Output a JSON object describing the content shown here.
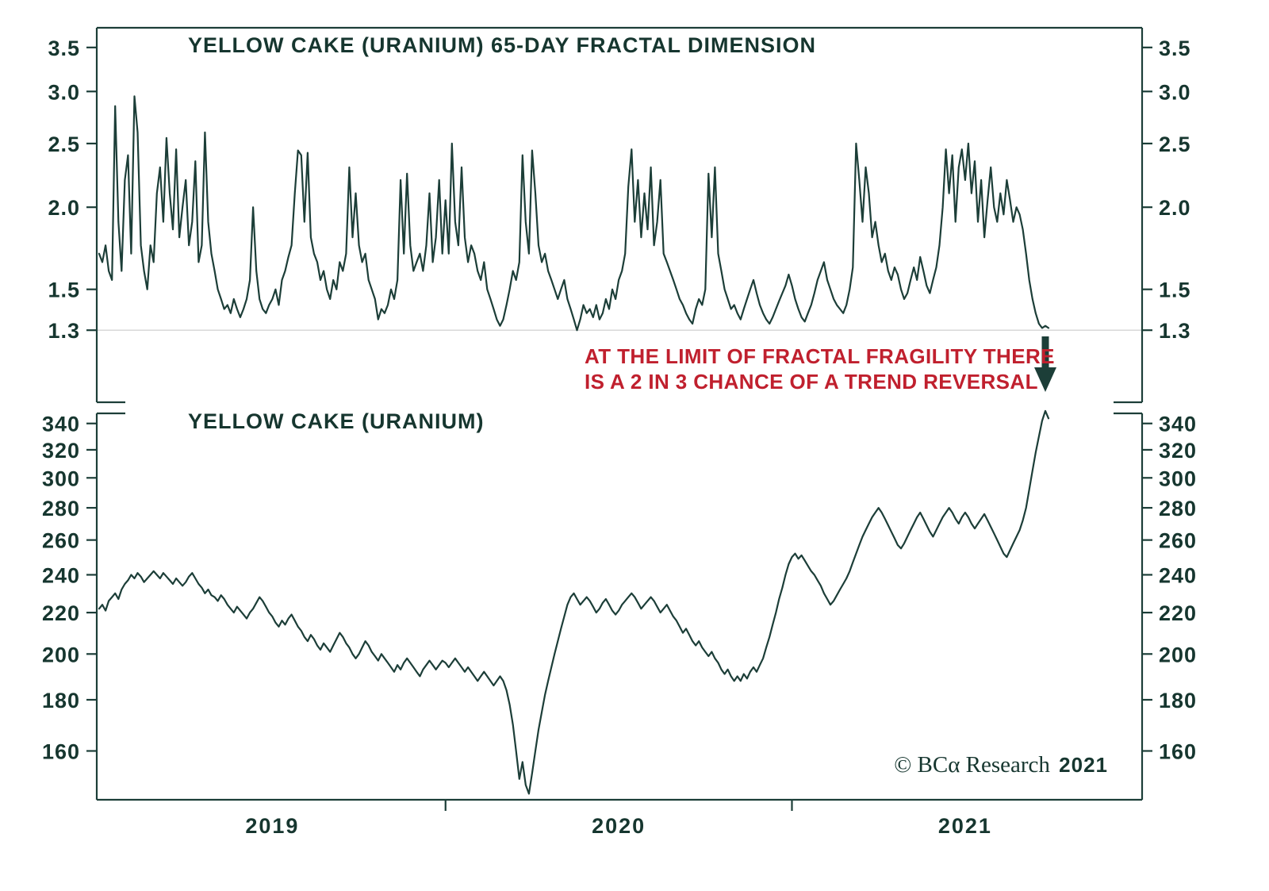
{
  "colors": {
    "line": "#1c3e38",
    "text": "#16362f",
    "annotation_red": "#c0202e",
    "gridline": "#c4c4c4",
    "background": "#ffffff"
  },
  "annotation": {
    "line1": "AT THE LIMIT OF FRACTAL FRAGILITY THERE",
    "line2": "IS A 2 IN 3 CHANCE OF A TREND REVERSAL"
  },
  "copyright": {
    "text": "© BCα Research",
    "year": "2021"
  },
  "x_axis": {
    "year_labels": [
      "2019",
      "2020",
      "2021"
    ],
    "months_total": 33,
    "points_per_month": 9,
    "year_tick_months": [
      12,
      24
    ],
    "year_label_center_months": [
      6,
      18,
      30
    ]
  },
  "chart_data": [
    {
      "type": "line",
      "title": "YELLOW CAKE (URANIUM) 65-DAY FRACTAL DIMENSION",
      "series_name": "65-day fractal dimension",
      "yscale": "log",
      "ylim": [
        1.01,
        3.75
      ],
      "ytick_values": [
        3.5,
        3.0,
        2.5,
        2.0,
        1.5,
        1.3
      ],
      "ytick_labels": [
        "3.5",
        "3.0",
        "2.5",
        "2.0",
        "1.5",
        "1.3"
      ],
      "reference_line": 1.3,
      "legend_position": "none",
      "grid": "reference-line-only",
      "values": [
        1.7,
        1.65,
        1.75,
        1.6,
        1.55,
        2.85,
        1.9,
        1.6,
        2.2,
        2.4,
        1.7,
        2.95,
        2.6,
        1.75,
        1.6,
        1.5,
        1.75,
        1.65,
        2.1,
        2.3,
        1.9,
        2.55,
        2.1,
        1.85,
        2.45,
        1.8,
        2.0,
        2.2,
        1.75,
        1.9,
        2.35,
        1.65,
        1.75,
        2.6,
        1.9,
        1.7,
        1.6,
        1.5,
        1.45,
        1.4,
        1.42,
        1.38,
        1.45,
        1.4,
        1.36,
        1.4,
        1.45,
        1.55,
        2.0,
        1.6,
        1.45,
        1.4,
        1.38,
        1.42,
        1.45,
        1.5,
        1.42,
        1.55,
        1.6,
        1.68,
        1.75,
        2.1,
        2.44,
        2.4,
        1.9,
        2.42,
        1.8,
        1.7,
        1.65,
        1.55,
        1.6,
        1.5,
        1.45,
        1.55,
        1.5,
        1.65,
        1.6,
        1.7,
        2.3,
        1.8,
        2.1,
        1.75,
        1.65,
        1.7,
        1.55,
        1.5,
        1.45,
        1.35,
        1.4,
        1.38,
        1.42,
        1.5,
        1.45,
        1.55,
        2.2,
        1.7,
        2.25,
        1.75,
        1.6,
        1.65,
        1.7,
        1.6,
        1.75,
        2.1,
        1.65,
        1.8,
        2.2,
        1.7,
        2.05,
        1.7,
        2.5,
        1.9,
        1.75,
        2.3,
        1.8,
        1.65,
        1.75,
        1.7,
        1.6,
        1.55,
        1.65,
        1.5,
        1.45,
        1.4,
        1.35,
        1.32,
        1.35,
        1.42,
        1.5,
        1.6,
        1.55,
        1.65,
        2.4,
        1.9,
        1.7,
        2.44,
        2.1,
        1.75,
        1.65,
        1.7,
        1.6,
        1.55,
        1.5,
        1.45,
        1.5,
        1.55,
        1.45,
        1.4,
        1.35,
        1.3,
        1.35,
        1.42,
        1.38,
        1.4,
        1.36,
        1.42,
        1.35,
        1.38,
        1.45,
        1.4,
        1.5,
        1.45,
        1.55,
        1.6,
        1.7,
        2.15,
        2.45,
        1.9,
        2.2,
        1.8,
        2.1,
        1.85,
        2.3,
        1.75,
        1.9,
        2.2,
        1.7,
        1.65,
        1.6,
        1.55,
        1.5,
        1.45,
        1.42,
        1.38,
        1.35,
        1.33,
        1.4,
        1.45,
        1.42,
        1.5,
        2.25,
        1.8,
        2.3,
        1.7,
        1.6,
        1.5,
        1.45,
        1.4,
        1.42,
        1.38,
        1.35,
        1.4,
        1.45,
        1.5,
        1.55,
        1.48,
        1.42,
        1.38,
        1.35,
        1.33,
        1.36,
        1.4,
        1.44,
        1.48,
        1.52,
        1.58,
        1.52,
        1.45,
        1.4,
        1.36,
        1.34,
        1.38,
        1.42,
        1.48,
        1.55,
        1.6,
        1.65,
        1.55,
        1.5,
        1.45,
        1.42,
        1.4,
        1.38,
        1.42,
        1.5,
        1.62,
        2.5,
        2.2,
        1.9,
        2.3,
        2.1,
        1.8,
        1.9,
        1.75,
        1.65,
        1.7,
        1.6,
        1.55,
        1.62,
        1.58,
        1.5,
        1.45,
        1.48,
        1.55,
        1.62,
        1.55,
        1.68,
        1.6,
        1.52,
        1.48,
        1.55,
        1.62,
        1.75,
        2.0,
        2.45,
        2.1,
        2.4,
        1.9,
        2.3,
        2.45,
        2.2,
        2.5,
        2.1,
        2.35,
        1.9,
        2.2,
        1.8,
        2.05,
        2.3,
        2.0,
        1.9,
        2.1,
        1.95,
        2.2,
        2.05,
        1.9,
        2.0,
        1.95,
        1.85,
        1.7,
        1.55,
        1.45,
        1.38,
        1.33,
        1.31,
        1.32,
        1.31
      ]
    },
    {
      "type": "line",
      "title": "YELLOW CAKE (URANIUM)",
      "series_name": "Yellow Cake (Uranium) price",
      "yscale": "log",
      "ylim": [
        143,
        348
      ],
      "ytick_values": [
        340,
        320,
        300,
        280,
        260,
        240,
        220,
        200,
        180,
        160
      ],
      "ytick_labels": [
        "340",
        "320",
        "300",
        "280",
        "260",
        "240",
        "220",
        "200",
        "180",
        "160"
      ],
      "legend_position": "none",
      "grid": "off",
      "values": [
        222,
        224,
        221,
        226,
        228,
        230,
        227,
        232,
        235,
        237,
        240,
        238,
        241,
        239,
        236,
        238,
        240,
        242,
        240,
        238,
        241,
        239,
        237,
        235,
        238,
        236,
        234,
        236,
        239,
        241,
        238,
        235,
        233,
        230,
        232,
        229,
        228,
        226,
        229,
        227,
        224,
        222,
        220,
        223,
        221,
        219,
        217,
        220,
        222,
        225,
        228,
        226,
        223,
        220,
        218,
        215,
        213,
        216,
        214,
        217,
        219,
        216,
        213,
        211,
        208,
        206,
        209,
        207,
        204,
        202,
        205,
        203,
        201,
        204,
        207,
        210,
        208,
        205,
        203,
        200,
        198,
        200,
        203,
        206,
        204,
        201,
        199,
        197,
        200,
        198,
        196,
        194,
        192,
        195,
        193,
        196,
        198,
        196,
        194,
        192,
        190,
        193,
        195,
        197,
        195,
        193,
        195,
        197,
        196,
        194,
        196,
        198,
        196,
        194,
        192,
        194,
        192,
        190,
        188,
        190,
        192,
        190,
        188,
        186,
        188,
        190,
        188,
        184,
        178,
        170,
        160,
        150,
        156,
        148,
        145,
        152,
        160,
        168,
        175,
        182,
        188,
        194,
        200,
        206,
        212,
        218,
        224,
        228,
        230,
        227,
        224,
        226,
        228,
        226,
        223,
        220,
        222,
        225,
        227,
        224,
        221,
        219,
        221,
        224,
        226,
        228,
        230,
        228,
        225,
        222,
        224,
        226,
        228,
        226,
        223,
        220,
        222,
        224,
        221,
        218,
        216,
        213,
        210,
        212,
        209,
        206,
        204,
        206,
        203,
        201,
        199,
        201,
        198,
        196,
        193,
        191,
        193,
        190,
        188,
        190,
        188,
        191,
        189,
        192,
        194,
        192,
        195,
        198,
        203,
        208,
        214,
        220,
        227,
        233,
        240,
        246,
        250,
        252,
        249,
        251,
        248,
        245,
        242,
        240,
        237,
        234,
        230,
        227,
        224,
        226,
        229,
        232,
        235,
        238,
        242,
        247,
        252,
        257,
        262,
        266,
        270,
        274,
        277,
        280,
        277,
        273,
        269,
        265,
        261,
        257,
        255,
        258,
        262,
        266,
        270,
        274,
        277,
        273,
        269,
        265,
        262,
        266,
        270,
        274,
        277,
        280,
        277,
        273,
        270,
        274,
        277,
        274,
        270,
        267,
        270,
        273,
        276,
        272,
        268,
        264,
        260,
        256,
        252,
        250,
        254,
        258,
        262,
        266,
        272,
        280,
        292,
        305,
        318,
        330,
        342,
        350,
        344
      ]
    }
  ]
}
